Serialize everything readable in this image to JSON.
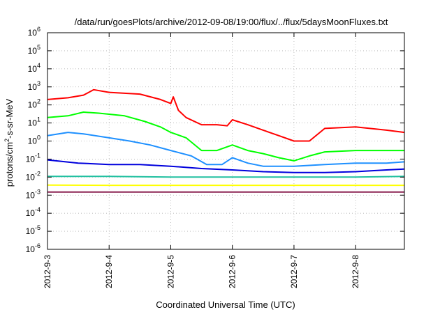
{
  "chart_data": {
    "type": "line",
    "title": "/data/run/goesPlots/archive/2012-09-08/19:00/flux/../flux/5daysMoonFluxes.txt",
    "xlabel": "Coordinated Universal Time (UTC)",
    "ylabel": {
      "base": "protons/cm",
      "sup": "2",
      "rest": "-s-sr-MeV"
    },
    "y_scale": "log",
    "ylim": [
      1e-06,
      1000000.0
    ],
    "xlim": [
      "2012-09-03",
      "2012-09-08 19:00"
    ],
    "x_ticks": [
      "2012-9-3",
      "2012-9-4",
      "2012-9-5",
      "2012-9-6",
      "2012-9-7",
      "2012-9-8"
    ],
    "y_ticks": [
      {
        "base": "10",
        "exp": "-6"
      },
      {
        "base": "10",
        "exp": "-5"
      },
      {
        "base": "10",
        "exp": "-4"
      },
      {
        "base": "10",
        "exp": "-3"
      },
      {
        "base": "10",
        "exp": "-2"
      },
      {
        "base": "10",
        "exp": "-1"
      },
      {
        "base": "10",
        "exp": "0"
      },
      {
        "base": "10",
        "exp": "1"
      },
      {
        "base": "10",
        "exp": "2"
      },
      {
        "base": "10",
        "exp": "3"
      },
      {
        "base": "10",
        "exp": "4"
      },
      {
        "base": "10",
        "exp": "5"
      },
      {
        "base": "10",
        "exp": "6"
      }
    ],
    "grid": true,
    "legend": "none",
    "series": [
      {
        "color": "#ff0000",
        "x": [
          "2012-09-03 00:00",
          "2012-09-03 08:00",
          "2012-09-03 14:00",
          "2012-09-03 18:00",
          "2012-09-04 00:00",
          "2012-09-04 12:00",
          "2012-09-04 20:00",
          "2012-09-05 00:00",
          "2012-09-05 01:00",
          "2012-09-05 03:00",
          "2012-09-05 06:00",
          "2012-09-05 12:00",
          "2012-09-05 18:00",
          "2012-09-05 22:00",
          "2012-09-06 00:00",
          "2012-09-06 06:00",
          "2012-09-06 12:00",
          "2012-09-06 18:00",
          "2012-09-07 00:00",
          "2012-09-07 06:00",
          "2012-09-07 12:00",
          "2012-09-08 00:00",
          "2012-09-08 12:00",
          "2012-09-08 19:00"
        ],
        "y": [
          200,
          250,
          350,
          700,
          500,
          400,
          200,
          120,
          280,
          50,
          20,
          8,
          8,
          7,
          15,
          8,
          4,
          2,
          1,
          1,
          5,
          6,
          4,
          3
        ]
      },
      {
        "color": "#00ff00",
        "x": [
          "2012-09-03 00:00",
          "2012-09-03 08:00",
          "2012-09-03 14:00",
          "2012-09-03 20:00",
          "2012-09-04 06:00",
          "2012-09-04 14:00",
          "2012-09-04 20:00",
          "2012-09-05 00:00",
          "2012-09-05 06:00",
          "2012-09-05 12:00",
          "2012-09-05 18:00",
          "2012-09-06 00:00",
          "2012-09-06 06:00",
          "2012-09-06 12:00",
          "2012-09-06 18:00",
          "2012-09-07 00:00",
          "2012-09-07 06:00",
          "2012-09-07 12:00",
          "2012-09-08 00:00",
          "2012-09-08 12:00",
          "2012-09-08 19:00"
        ],
        "y": [
          20,
          25,
          40,
          35,
          25,
          12,
          6,
          3,
          1.5,
          0.3,
          0.3,
          0.6,
          0.3,
          0.2,
          0.12,
          0.08,
          0.15,
          0.25,
          0.3,
          0.3,
          0.3
        ]
      },
      {
        "color": "#1e90ff",
        "x": [
          "2012-09-03 00:00",
          "2012-09-03 08:00",
          "2012-09-03 14:00",
          "2012-09-04 00:00",
          "2012-09-04 08:00",
          "2012-09-04 16:00",
          "2012-09-05 00:00",
          "2012-09-05 08:00",
          "2012-09-05 14:00",
          "2012-09-05 20:00",
          "2012-09-06 00:00",
          "2012-09-06 06:00",
          "2012-09-06 12:00",
          "2012-09-06 18:00",
          "2012-09-07 00:00",
          "2012-09-07 12:00",
          "2012-09-08 00:00",
          "2012-09-08 12:00",
          "2012-09-08 19:00"
        ],
        "y": [
          2,
          3,
          2.5,
          1.5,
          1,
          0.6,
          0.3,
          0.15,
          0.05,
          0.05,
          0.12,
          0.06,
          0.04,
          0.04,
          0.04,
          0.05,
          0.06,
          0.06,
          0.07
        ]
      },
      {
        "color": "#0000dd",
        "x": [
          "2012-09-03 00:00",
          "2012-09-03 12:00",
          "2012-09-04 00:00",
          "2012-09-04 12:00",
          "2012-09-05 00:00",
          "2012-09-05 12:00",
          "2012-09-06 00:00",
          "2012-09-06 12:00",
          "2012-09-07 00:00",
          "2012-09-07 12:00",
          "2012-09-08 00:00",
          "2012-09-08 12:00",
          "2012-09-08 19:00"
        ],
        "y": [
          0.09,
          0.06,
          0.05,
          0.05,
          0.04,
          0.03,
          0.025,
          0.02,
          0.018,
          0.018,
          0.02,
          0.025,
          0.028
        ]
      },
      {
        "color": "#20c0a0",
        "x": [
          "2012-09-03 00:00",
          "2012-09-04 00:00",
          "2012-09-05 00:00",
          "2012-09-06 00:00",
          "2012-09-07 00:00",
          "2012-09-08 00:00",
          "2012-09-08 19:00"
        ],
        "y": [
          0.011,
          0.011,
          0.01,
          0.01,
          0.01,
          0.01,
          0.011
        ]
      },
      {
        "color": "#ffff00",
        "x": [
          "2012-09-03 00:00",
          "2012-09-04 00:00",
          "2012-09-05 00:00",
          "2012-09-06 00:00",
          "2012-09-07 00:00",
          "2012-09-08 00:00",
          "2012-09-08 19:00"
        ],
        "y": [
          0.0036,
          0.0035,
          0.0035,
          0.0035,
          0.0035,
          0.0035,
          0.0035
        ]
      },
      {
        "color": "#8b2252",
        "x": [
          "2012-09-03 00:00",
          "2012-09-04 00:00",
          "2012-09-05 00:00",
          "2012-09-06 00:00",
          "2012-09-07 00:00",
          "2012-09-08 00:00",
          "2012-09-08 19:00"
        ],
        "y": [
          0.0015,
          0.0015,
          0.0015,
          0.0015,
          0.0015,
          0.0015,
          0.0015
        ]
      }
    ]
  }
}
